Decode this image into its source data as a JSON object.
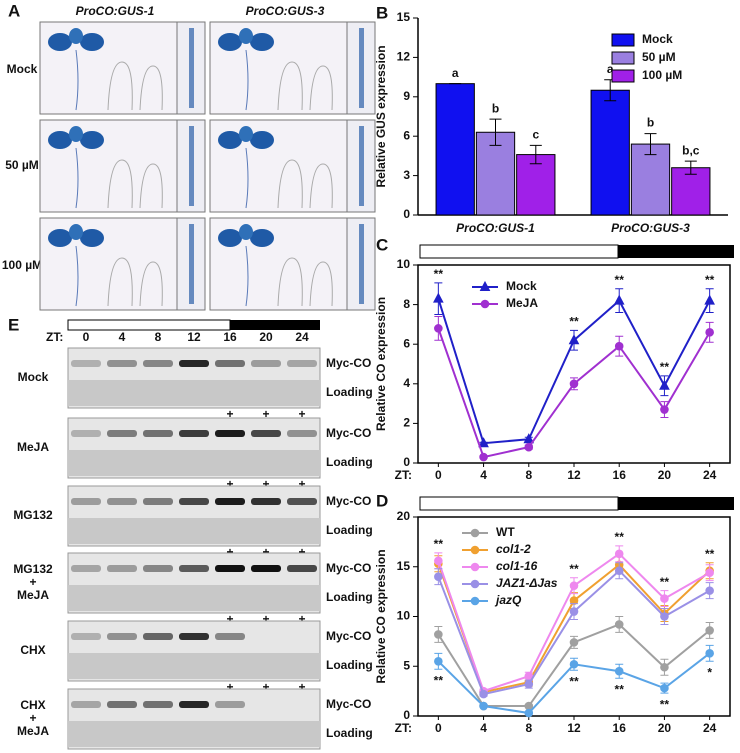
{
  "panel_labels": [
    "A",
    "B",
    "C",
    "D",
    "E"
  ],
  "panel_a": {
    "columns": [
      "ProCO:GUS-1",
      "ProCO:GUS-3"
    ],
    "rows": [
      "Mock",
      "50 µM",
      "100 µM"
    ]
  },
  "panel_e": {
    "zt_label": "ZT:",
    "zt": [
      "0",
      "4",
      "8",
      "12",
      "16",
      "20",
      "24"
    ],
    "rows": [
      [
        "Mock"
      ],
      [
        "MeJA"
      ],
      [
        "MG132"
      ],
      [
        "MG132",
        "+",
        "MeJA"
      ],
      [
        "CHX"
      ],
      [
        "CHX",
        "+",
        "MeJA"
      ]
    ],
    "band_label": "Myc-CO",
    "loading_label": "Loading",
    "plus": "+"
  },
  "chart_data": [
    {
      "type": "bar",
      "y_label": "Relative GUS expression",
      "categories": [
        "ProCO:GUS-1",
        "ProCO:GUS-3"
      ],
      "series": [
        {
          "name": "Mock",
          "color": "#1010f0",
          "values": [
            10,
            9.5
          ],
          "errors": [
            0,
            0.8
          ],
          "labels": [
            "a",
            "a"
          ]
        },
        {
          "name": "50 µM",
          "color": "#9a7fe0",
          "values": [
            6.3,
            5.4
          ],
          "errors": [
            1.0,
            0.8
          ],
          "labels": [
            "b",
            "b"
          ]
        },
        {
          "name": "100 µM",
          "color": "#a020e8",
          "values": [
            4.6,
            3.6
          ],
          "errors": [
            0.7,
            0.5
          ],
          "labels": [
            "c",
            "b,c"
          ]
        }
      ],
      "ylim": [
        0,
        15
      ],
      "yticks": [
        0,
        3,
        6,
        9,
        12,
        15
      ],
      "legend": "upper right"
    },
    {
      "type": "line",
      "y_label": "Relative CO expression",
      "x_label": "ZT:",
      "x": [
        0,
        4,
        8,
        12,
        16,
        20,
        24
      ],
      "xlim": [
        -1.8,
        25.8
      ],
      "xticks": [
        0,
        4,
        8,
        12,
        16,
        20,
        24
      ],
      "ylim": [
        0,
        10
      ],
      "yticks": [
        0,
        2,
        4,
        6,
        8,
        10
      ],
      "legend": "upper left",
      "series": [
        {
          "name": "Mock",
          "color": "#2020c8",
          "marker": "triangle",
          "values": [
            8.3,
            1.0,
            1.2,
            6.2,
            8.2,
            3.9,
            8.2
          ],
          "errors": [
            0.8,
            0.05,
            0.1,
            0.5,
            0.6,
            0.5,
            0.6
          ]
        },
        {
          "name": "MeJA",
          "color": "#a030d0",
          "marker": "circle",
          "values": [
            6.8,
            0.3,
            0.8,
            4.0,
            5.9,
            2.7,
            6.6
          ],
          "errors": [
            0.6,
            0.05,
            0.1,
            0.3,
            0.5,
            0.4,
            0.5
          ]
        }
      ],
      "significance": [
        "**",
        null,
        null,
        "**",
        "**",
        "**",
        "**"
      ]
    },
    {
      "type": "line",
      "y_label": "Relative CO expression",
      "x_label": "ZT:",
      "x": [
        0,
        4,
        8,
        12,
        16,
        20,
        24
      ],
      "xlim": [
        -1.8,
        25.8
      ],
      "xticks": [
        0,
        4,
        8,
        12,
        16,
        20,
        24
      ],
      "ylim": [
        0,
        20
      ],
      "yticks": [
        0,
        5,
        10,
        15,
        20
      ],
      "legend": "upper left",
      "series": [
        {
          "name": "WT",
          "color": "#a0a0a0",
          "marker": "circle",
          "values": [
            8.2,
            1.0,
            1.0,
            7.4,
            9.2,
            4.9,
            8.6
          ],
          "errors": [
            0.8,
            0.1,
            0.1,
            0.6,
            0.8,
            0.8,
            0.8
          ]
        },
        {
          "name": "col1-2",
          "color": "#f0a030",
          "marker": "circle",
          "values": [
            15.3,
            2.4,
            3.4,
            11.6,
            15.2,
            10.3,
            14.6
          ],
          "errors": [
            0.8,
            0.2,
            0.4,
            0.8,
            0.8,
            0.8,
            0.8
          ]
        },
        {
          "name": "col1-16",
          "color": "#ee88ee",
          "marker": "circle",
          "values": [
            15.6,
            2.5,
            4.0,
            13.1,
            16.3,
            11.8,
            14.4
          ],
          "errors": [
            0.8,
            0.2,
            0.4,
            0.8,
            0.8,
            0.8,
            0.8
          ]
        },
        {
          "name": "JAZ1-ΔJas",
          "color": "#9a90e6",
          "marker": "circle",
          "values": [
            14.0,
            2.2,
            3.2,
            10.5,
            14.6,
            10.0,
            12.6
          ],
          "errors": [
            0.8,
            0.2,
            0.4,
            0.8,
            0.8,
            0.8,
            0.8
          ]
        },
        {
          "name": "jazQ",
          "color": "#5aa4e6",
          "marker": "circle",
          "values": [
            5.5,
            1.0,
            0.3,
            5.2,
            4.5,
            2.8,
            6.3
          ],
          "errors": [
            0.8,
            0.1,
            0.1,
            0.6,
            0.7,
            0.5,
            0.8
          ]
        }
      ],
      "significance": [
        "**",
        null,
        null,
        "**",
        "**",
        "**",
        "**"
      ],
      "significance_low": [
        "**",
        null,
        null,
        "**",
        "**",
        "**",
        "*"
      ]
    }
  ]
}
